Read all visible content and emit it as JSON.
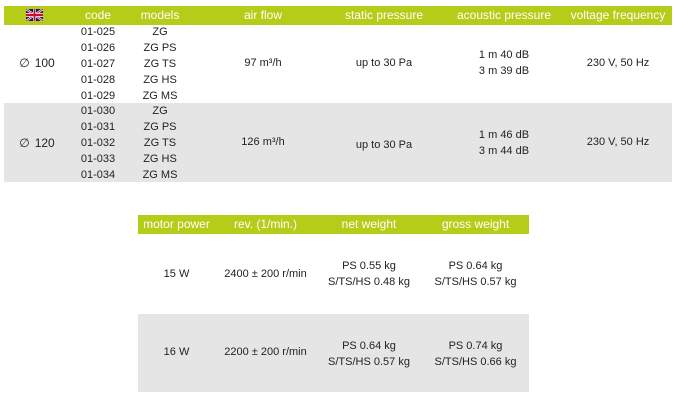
{
  "colors": {
    "header_bg": "#b5cc18",
    "header_text": "#ffffff",
    "stripe": "#e5e5e5"
  },
  "table1": {
    "flag_icon": "uk-flag-icon",
    "headers": {
      "code": "code",
      "models": "models",
      "air_flow": "air flow",
      "static_pressure": "static pressure",
      "acoustic_pressure": "acoustic pressure",
      "voltage_frequency": "voltage frequency"
    },
    "rows": [
      {
        "diameter_symbol": "∅",
        "diameter": "100",
        "codes": [
          "01-025",
          "01-026",
          "01-027",
          "01-028",
          "01-029"
        ],
        "models": [
          "ZG",
          "ZG PS",
          "ZG TS",
          "ZG HS",
          "ZG MS"
        ],
        "air_flow": "97 m³/h",
        "static_pressure": "up to 30 Pa",
        "acoustic_pressure": [
          "1 m 40 dB",
          "3 m 39 dB"
        ],
        "voltage_frequency": "230 V, 50 Hz"
      },
      {
        "diameter_symbol": "∅",
        "diameter": "120",
        "codes": [
          "01-030",
          "01-031",
          "01-032",
          "01-033",
          "01-034"
        ],
        "models": [
          "ZG",
          "ZG PS",
          "ZG TS",
          "ZG HS",
          "ZG MS"
        ],
        "air_flow": "126 m³/h",
        "static_pressure": "up to 30 Pa",
        "acoustic_pressure": [
          "1 m 46 dB",
          "3 m 44 dB"
        ],
        "voltage_frequency": "230 V, 50 Hz"
      }
    ]
  },
  "table2": {
    "headers": {
      "motor_power": "motor power",
      "rev": "rev. (1/min.)",
      "net_weight": "net weight",
      "gross_weight": "gross weight"
    },
    "rows": [
      {
        "motor_power": "15 W",
        "rev": "2400 ± 200 r/min",
        "net_weight": [
          "PS 0.55 kg",
          "S/TS/HS 0.48 kg"
        ],
        "gross_weight": [
          "PS 0.64 kg",
          "S/TS/HS 0.57 kg"
        ]
      },
      {
        "motor_power": "16 W",
        "rev": "2200 ± 200 r/min",
        "net_weight": [
          "PS 0.64 kg",
          "S/TS/HS 0.57 kg"
        ],
        "gross_weight": [
          "PS 0.74 kg",
          "S/TS/HS 0.66 kg"
        ]
      }
    ]
  }
}
